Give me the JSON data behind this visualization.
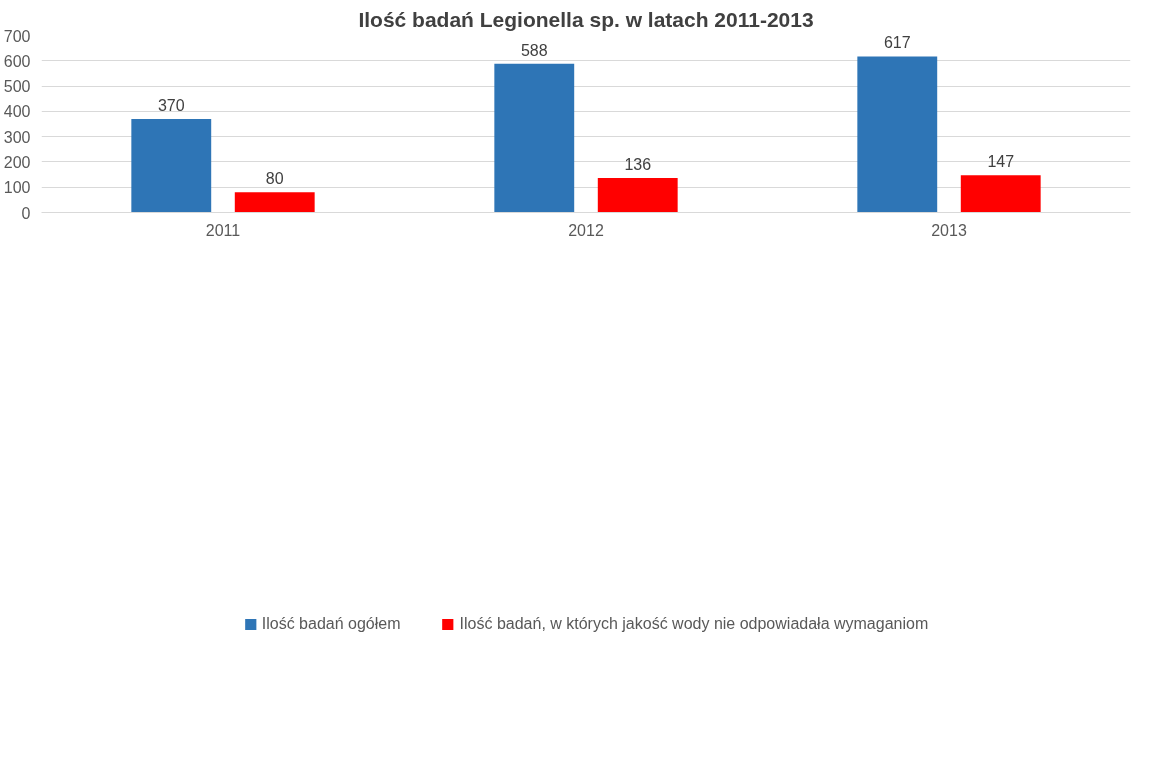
{
  "chart_data": {
    "type": "bar",
    "title": "Ilość badań Legionella sp. w latach 2011-2013",
    "categories": [
      "2011",
      "2012",
      "2013"
    ],
    "series": [
      {
        "name": "Ilość badań ogółem",
        "color": "#2e75b6",
        "values": [
          370,
          588,
          617
        ]
      },
      {
        "name": "Ilość badań, w których jakość wody nie odpowiadała wymaganiom",
        "color": "#ff0000",
        "values": [
          80,
          136,
          147
        ]
      }
    ],
    "ylim": [
      0,
      700
    ],
    "yticks": [
      0,
      100,
      200,
      300,
      400,
      500,
      600,
      700
    ],
    "grid": "y",
    "legend": "bottom",
    "data_labels": true
  }
}
